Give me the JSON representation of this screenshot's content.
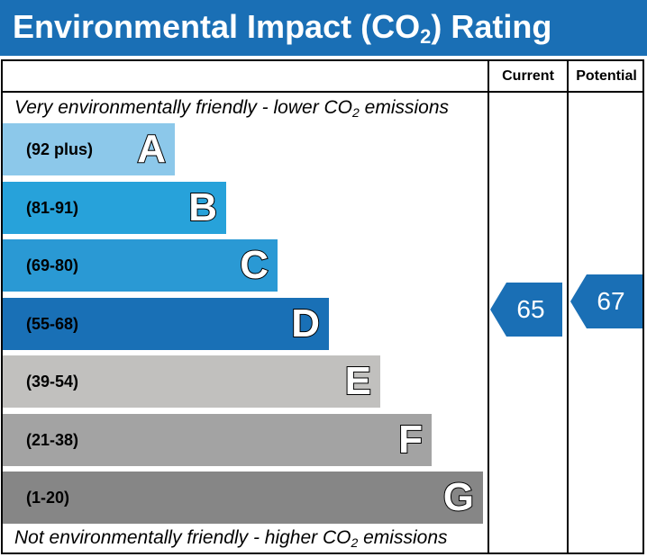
{
  "header": {
    "title_pre": "Environmental Impact (CO",
    "title_sub": "2",
    "title_post": ") Rating"
  },
  "columns": {
    "current": "Current",
    "potential": "Potential"
  },
  "captions": {
    "top_pre": "Very environmentally friendly - lower CO",
    "top_sub": "2",
    "top_post": " emissions",
    "bottom_pre": "Not environmentally friendly - higher CO",
    "bottom_sub": "2",
    "bottom_post": " emissions"
  },
  "chart_data": {
    "type": "bar",
    "categories": [
      "A",
      "B",
      "C",
      "D",
      "E",
      "F",
      "G"
    ],
    "bands": [
      {
        "letter": "A",
        "range": "(92 plus)",
        "color": "#8cc8ea"
      },
      {
        "letter": "B",
        "range": "(81-91)",
        "color": "#27a2da"
      },
      {
        "letter": "C",
        "range": "(69-80)",
        "color": "#2a99d4"
      },
      {
        "letter": "D",
        "range": "(55-68)",
        "color": "#1970b6"
      },
      {
        "letter": "E",
        "range": "(39-54)",
        "color": "#c1c0be"
      },
      {
        "letter": "F",
        "range": "(21-38)",
        "color": "#a3a3a3"
      },
      {
        "letter": "G",
        "range": "(1-20)",
        "color": "#868686"
      }
    ],
    "current": {
      "value": "65",
      "band": "D",
      "color": "#1a6fb5"
    },
    "potential": {
      "value": "67",
      "band": "D",
      "color": "#1a6fb5"
    }
  }
}
